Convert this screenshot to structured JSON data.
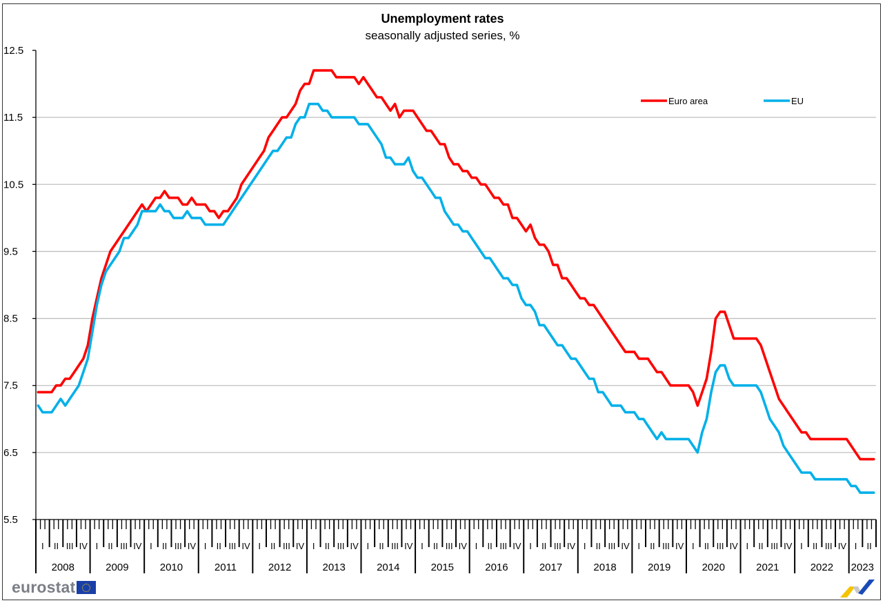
{
  "header": {
    "title": "Unemployment rates",
    "subtitle": "seasonally adjusted series, %"
  },
  "footer": {
    "logo_text": "eurostat",
    "logo_flag": "eu-flag-icon",
    "corner_logo": "eurostat-swoosh-icon"
  },
  "colors": {
    "euro_area": "#ff0000",
    "eu": "#00b0e8",
    "grid": "#bfbfbf",
    "axis": "#000000"
  },
  "chart_data": {
    "type": "line",
    "title": "Unemployment rates",
    "subtitle": "seasonally adjusted series, %",
    "xlabel": "",
    "ylabel": "",
    "ylim": [
      5.5,
      12.5
    ],
    "yticks": [
      "12.5",
      "11.5",
      "10.5",
      "9.5",
      "8.5",
      "7.5",
      "6.5",
      "5.5"
    ],
    "grid": true,
    "legend_position": "top-right",
    "x_start": "2008-01",
    "x_end": "2023-06",
    "x_frequency": "monthly",
    "year_labels": [
      "2008",
      "2009",
      "2010",
      "2011",
      "2012",
      "2013",
      "2014",
      "2015",
      "2016",
      "2017",
      "2018",
      "2019",
      "2020",
      "2021",
      "2022",
      "2023"
    ],
    "quarter_labels": [
      "I",
      "II",
      "III",
      "IV"
    ],
    "series": [
      {
        "name": "Euro area",
        "color": "#ff0000",
        "values": [
          7.4,
          7.4,
          7.4,
          7.4,
          7.5,
          7.5,
          7.6,
          7.6,
          7.7,
          7.8,
          7.9,
          8.1,
          8.5,
          8.8,
          9.1,
          9.3,
          9.5,
          9.6,
          9.7,
          9.8,
          9.9,
          10.0,
          10.1,
          10.2,
          10.1,
          10.2,
          10.3,
          10.3,
          10.4,
          10.3,
          10.3,
          10.3,
          10.2,
          10.2,
          10.3,
          10.2,
          10.2,
          10.2,
          10.1,
          10.1,
          10.0,
          10.1,
          10.1,
          10.2,
          10.3,
          10.5,
          10.6,
          10.7,
          10.8,
          10.9,
          11.0,
          11.2,
          11.3,
          11.4,
          11.5,
          11.5,
          11.6,
          11.7,
          11.9,
          12.0,
          12.0,
          12.2,
          12.2,
          12.2,
          12.2,
          12.2,
          12.1,
          12.1,
          12.1,
          12.1,
          12.1,
          12.0,
          12.1,
          12.0,
          11.9,
          11.8,
          11.8,
          11.7,
          11.6,
          11.7,
          11.5,
          11.6,
          11.6,
          11.6,
          11.5,
          11.4,
          11.3,
          11.3,
          11.2,
          11.1,
          11.1,
          10.9,
          10.8,
          10.8,
          10.7,
          10.7,
          10.6,
          10.6,
          10.5,
          10.5,
          10.4,
          10.3,
          10.3,
          10.2,
          10.2,
          10.0,
          10.0,
          9.9,
          9.8,
          9.9,
          9.7,
          9.6,
          9.6,
          9.5,
          9.3,
          9.3,
          9.1,
          9.1,
          9.0,
          8.9,
          8.8,
          8.8,
          8.7,
          8.7,
          8.6,
          8.5,
          8.4,
          8.3,
          8.2,
          8.1,
          8.0,
          8.0,
          8.0,
          7.9,
          7.9,
          7.9,
          7.8,
          7.7,
          7.7,
          7.6,
          7.5,
          7.5,
          7.5,
          7.5,
          7.5,
          7.4,
          7.2,
          7.4,
          7.6,
          8.0,
          8.5,
          8.6,
          8.6,
          8.4,
          8.2,
          8.2,
          8.2,
          8.2,
          8.2,
          8.2,
          8.1,
          7.9,
          7.7,
          7.5,
          7.3,
          7.2,
          7.1,
          7.0,
          6.9,
          6.8,
          6.8,
          6.7,
          6.7,
          6.7,
          6.7,
          6.7,
          6.7,
          6.7,
          6.7,
          6.7,
          6.6,
          6.5,
          6.4,
          6.4,
          6.4,
          6.4
        ]
      },
      {
        "name": "EU",
        "color": "#00b0e8",
        "values": [
          7.2,
          7.1,
          7.1,
          7.1,
          7.2,
          7.3,
          7.2,
          7.3,
          7.4,
          7.5,
          7.7,
          7.9,
          8.3,
          8.7,
          9.0,
          9.2,
          9.3,
          9.4,
          9.5,
          9.7,
          9.7,
          9.8,
          9.9,
          10.1,
          10.1,
          10.1,
          10.1,
          10.2,
          10.1,
          10.1,
          10.0,
          10.0,
          10.0,
          10.1,
          10.0,
          10.0,
          10.0,
          9.9,
          9.9,
          9.9,
          9.9,
          9.9,
          10.0,
          10.1,
          10.2,
          10.3,
          10.4,
          10.5,
          10.6,
          10.7,
          10.8,
          10.9,
          11.0,
          11.0,
          11.1,
          11.2,
          11.2,
          11.4,
          11.5,
          11.5,
          11.7,
          11.7,
          11.7,
          11.6,
          11.6,
          11.5,
          11.5,
          11.5,
          11.5,
          11.5,
          11.5,
          11.4,
          11.4,
          11.4,
          11.3,
          11.2,
          11.1,
          10.9,
          10.9,
          10.8,
          10.8,
          10.8,
          10.9,
          10.7,
          10.6,
          10.6,
          10.5,
          10.4,
          10.3,
          10.3,
          10.1,
          10.0,
          9.9,
          9.9,
          9.8,
          9.8,
          9.7,
          9.6,
          9.5,
          9.4,
          9.4,
          9.3,
          9.2,
          9.1,
          9.1,
          9.0,
          9.0,
          8.8,
          8.7,
          8.7,
          8.6,
          8.4,
          8.4,
          8.3,
          8.2,
          8.1,
          8.1,
          8.0,
          7.9,
          7.9,
          7.8,
          7.7,
          7.6,
          7.6,
          7.4,
          7.4,
          7.3,
          7.2,
          7.2,
          7.2,
          7.1,
          7.1,
          7.1,
          7.0,
          7.0,
          6.9,
          6.8,
          6.7,
          6.8,
          6.7,
          6.7,
          6.7,
          6.7,
          6.7,
          6.7,
          6.6,
          6.5,
          6.8,
          7.0,
          7.4,
          7.7,
          7.8,
          7.8,
          7.6,
          7.5,
          7.5,
          7.5,
          7.5,
          7.5,
          7.5,
          7.4,
          7.2,
          7.0,
          6.9,
          6.8,
          6.6,
          6.5,
          6.4,
          6.3,
          6.2,
          6.2,
          6.2,
          6.1,
          6.1,
          6.1,
          6.1,
          6.1,
          6.1,
          6.1,
          6.1,
          6.0,
          6.0,
          5.9,
          5.9,
          5.9,
          5.9
        ]
      }
    ]
  }
}
